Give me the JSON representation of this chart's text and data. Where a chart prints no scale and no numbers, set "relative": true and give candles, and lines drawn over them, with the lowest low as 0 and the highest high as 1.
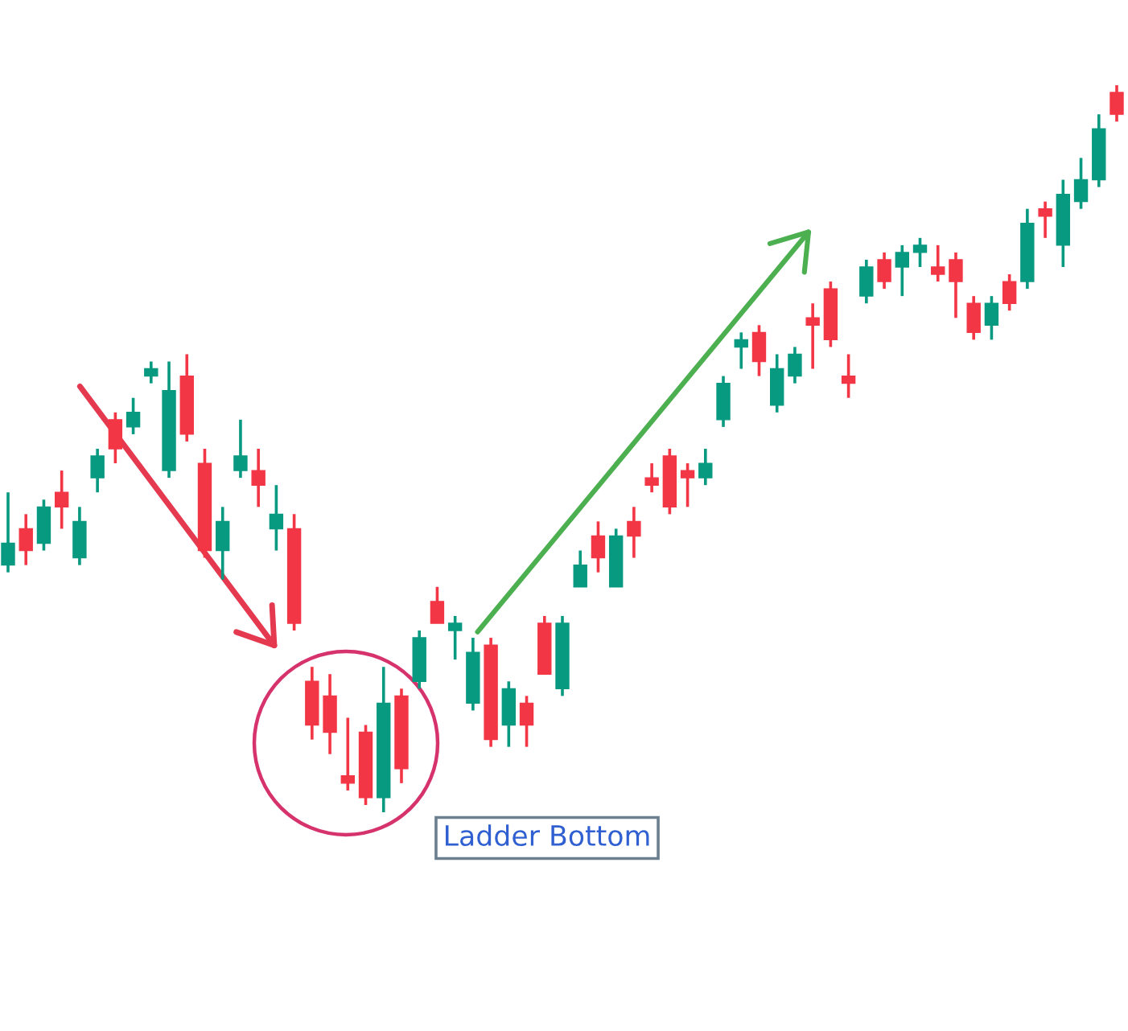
{
  "chart_data": {
    "type": "candlestick",
    "relative": true,
    "categories": [
      null,
      null,
      null,
      null,
      null,
      null,
      null,
      null,
      null,
      null,
      null,
      null,
      null,
      null,
      null,
      null,
      null,
      null,
      null,
      null,
      null,
      null,
      null,
      null,
      null,
      null,
      null,
      null,
      null,
      null,
      null,
      null,
      null,
      null,
      null,
      null,
      null,
      null,
      null,
      null,
      null,
      null,
      null,
      null,
      null,
      null,
      null,
      null,
      null,
      null,
      null,
      null,
      null,
      null,
      null,
      null,
      null,
      null,
      null,
      null,
      null,
      null,
      null
    ],
    "ohlc": [
      [
        0.34,
        0.44,
        0.33,
        0.37
      ],
      [
        0.39,
        0.41,
        0.34,
        0.36
      ],
      [
        0.37,
        0.43,
        0.36,
        0.42
      ],
      [
        0.44,
        0.47,
        0.39,
        0.42
      ],
      [
        0.35,
        0.42,
        0.34,
        0.4
      ],
      [
        0.46,
        0.5,
        0.44,
        0.49
      ],
      [
        0.54,
        0.55,
        0.48,
        0.5
      ],
      [
        0.53,
        0.57,
        0.52,
        0.55
      ],
      [
        0.6,
        0.62,
        0.59,
        0.61
      ],
      [
        0.47,
        0.62,
        0.46,
        0.58
      ],
      [
        0.6,
        0.63,
        0.51,
        0.52
      ],
      [
        0.48,
        0.5,
        0.35,
        0.36
      ],
      [
        0.36,
        0.42,
        0.32,
        0.4
      ],
      [
        0.47,
        0.54,
        0.46,
        0.49
      ],
      [
        0.47,
        0.5,
        0.42,
        0.45
      ],
      [
        0.39,
        0.45,
        0.36,
        0.41
      ],
      [
        0.39,
        0.41,
        0.25,
        0.26
      ],
      [
        0.18,
        0.2,
        0.1,
        0.12
      ],
      [
        0.16,
        0.19,
        0.08,
        0.11
      ],
      [
        0.05,
        0.13,
        0.03,
        0.04
      ],
      [
        0.11,
        0.12,
        0.01,
        0.02
      ],
      [
        0.02,
        0.2,
        0,
        0.15
      ],
      [
        0.16,
        0.17,
        0.04,
        0.06
      ],
      [
        0.18,
        0.25,
        0.17,
        0.24
      ],
      [
        0.29,
        0.31,
        0.26,
        0.26
      ],
      [
        0.25,
        0.27,
        0.21,
        0.26
      ],
      [
        0.15,
        0.24,
        0.14,
        0.22
      ],
      [
        0.23,
        0.24,
        0.09,
        0.1
      ],
      [
        0.12,
        0.18,
        0.09,
        0.17
      ],
      [
        0.15,
        0.16,
        0.09,
        0.12
      ],
      [
        0.26,
        0.27,
        0.19,
        0.19
      ],
      [
        0.17,
        0.27,
        0.16,
        0.26
      ],
      [
        0.31,
        0.36,
        0.31,
        0.34
      ],
      [
        0.38,
        0.4,
        0.33,
        0.35
      ],
      [
        0.31,
        0.39,
        0.31,
        0.38
      ],
      [
        0.4,
        0.42,
        0.35,
        0.38
      ],
      [
        0.46,
        0.48,
        0.44,
        0.45
      ],
      [
        0.49,
        0.5,
        0.41,
        0.42
      ],
      [
        0.47,
        0.48,
        0.42,
        0.46
      ],
      [
        0.46,
        0.5,
        0.45,
        0.48
      ],
      [
        0.54,
        0.6,
        0.53,
        0.59
      ],
      [
        0.64,
        0.66,
        0.61,
        0.65
      ],
      [
        0.66,
        0.67,
        0.6,
        0.62
      ],
      [
        0.56,
        0.63,
        0.55,
        0.61
      ],
      [
        0.6,
        0.64,
        0.59,
        0.63
      ],
      [
        0.68,
        0.7,
        0.61,
        0.67
      ],
      [
        0.72,
        0.73,
        0.64,
        0.65
      ],
      [
        0.6,
        0.63,
        0.57,
        0.59
      ],
      [
        0.71,
        0.76,
        0.7,
        0.75
      ],
      [
        0.76,
        0.77,
        0.72,
        0.73
      ],
      [
        0.75,
        0.78,
        0.71,
        0.77
      ],
      [
        0.77,
        0.79,
        0.75,
        0.78
      ],
      [
        0.75,
        0.78,
        0.73,
        0.74
      ],
      [
        0.76,
        0.77,
        0.68,
        0.73
      ],
      [
        0.7,
        0.71,
        0.65,
        0.66
      ],
      [
        0.67,
        0.71,
        0.65,
        0.7
      ],
      [
        0.73,
        0.74,
        0.69,
        0.7
      ],
      [
        0.73,
        0.83,
        0.72,
        0.81
      ],
      [
        0.83,
        0.84,
        0.79,
        0.82
      ],
      [
        0.78,
        0.87,
        0.75,
        0.85
      ],
      [
        0.84,
        0.9,
        0.83,
        0.87
      ],
      [
        0.87,
        0.96,
        0.86,
        0.94
      ],
      [
        0.99,
        1,
        0.95,
        0.96
      ]
    ],
    "colors": [
      "#089981",
      "#f23645",
      "#089981",
      "#f23645",
      "#089981",
      "#089981",
      "#f23645",
      "#089981",
      "#089981",
      "#089981",
      "#f23645",
      "#f23645",
      "#089981",
      "#089981",
      "#f23645",
      "#089981",
      "#f23645",
      "#f23645",
      "#f23645",
      "#f23645",
      "#f23645",
      "#089981",
      "#f23645",
      "#089981",
      "#f23645",
      "#089981",
      "#089981",
      "#f23645",
      "#089981",
      "#f23645",
      "#f23645",
      "#089981",
      "#089981",
      "#f23645",
      "#089981",
      "#f23645",
      "#f23645",
      "#f23645",
      "#f23645",
      "#089981",
      "#089981",
      "#089981",
      "#f23645",
      "#089981",
      "#089981",
      "#f23645",
      "#f23645",
      "#f23645",
      "#089981",
      "#f23645",
      "#089981",
      "#089981",
      "#f23645",
      "#f23645",
      "#f23645",
      "#089981",
      "#f23645",
      "#089981",
      "#f23645",
      "#089981",
      "#089981",
      "#089981",
      "#f23645"
    ],
    "annotations": [
      "Ladder Bottom"
    ]
  }
}
